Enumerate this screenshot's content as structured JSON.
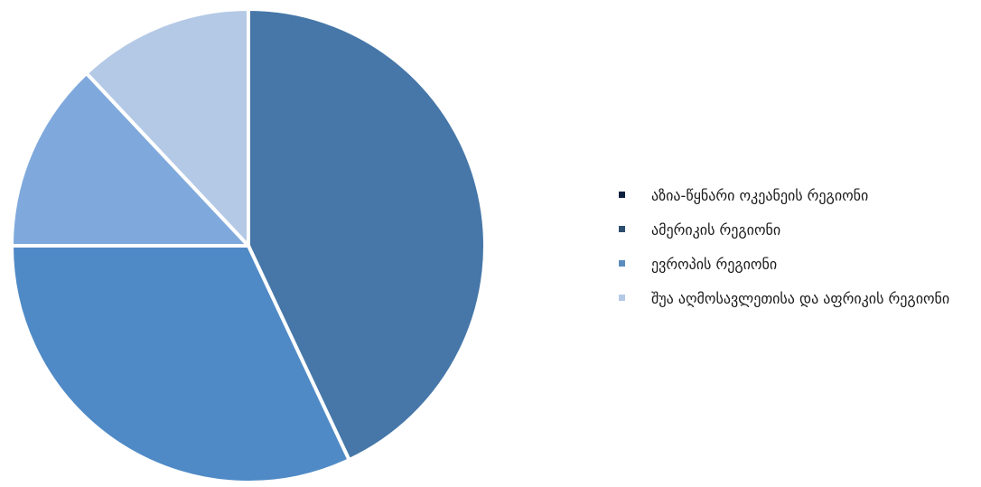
{
  "chart_data": {
    "type": "pie",
    "slices": [
      {
        "label": "აზია-წყნარი ოკეანეის რეგიონი",
        "value": 0,
        "swatch": "#0c1f3f",
        "color": null
      },
      {
        "label": "ამერიკის რეგიონი",
        "value": 43,
        "swatch": "#2c4d6e",
        "color": "#4677a8"
      },
      {
        "label": "ევროპის რეგიონი",
        "value": 32,
        "swatch": "#5b8cbf",
        "color": "#4f8ac6"
      },
      {
        "label": "შუა აღმოსავლეთისა და აფრიკის რეგიონი",
        "value": 13,
        "swatch": "#b4c9e6",
        "color": "#7fa9dc"
      },
      {
        "label": "",
        "value": 12,
        "swatch": null,
        "color": "#b4c9e6"
      }
    ],
    "legend_position": "right",
    "start_angle": "top",
    "direction": "clockwise"
  }
}
